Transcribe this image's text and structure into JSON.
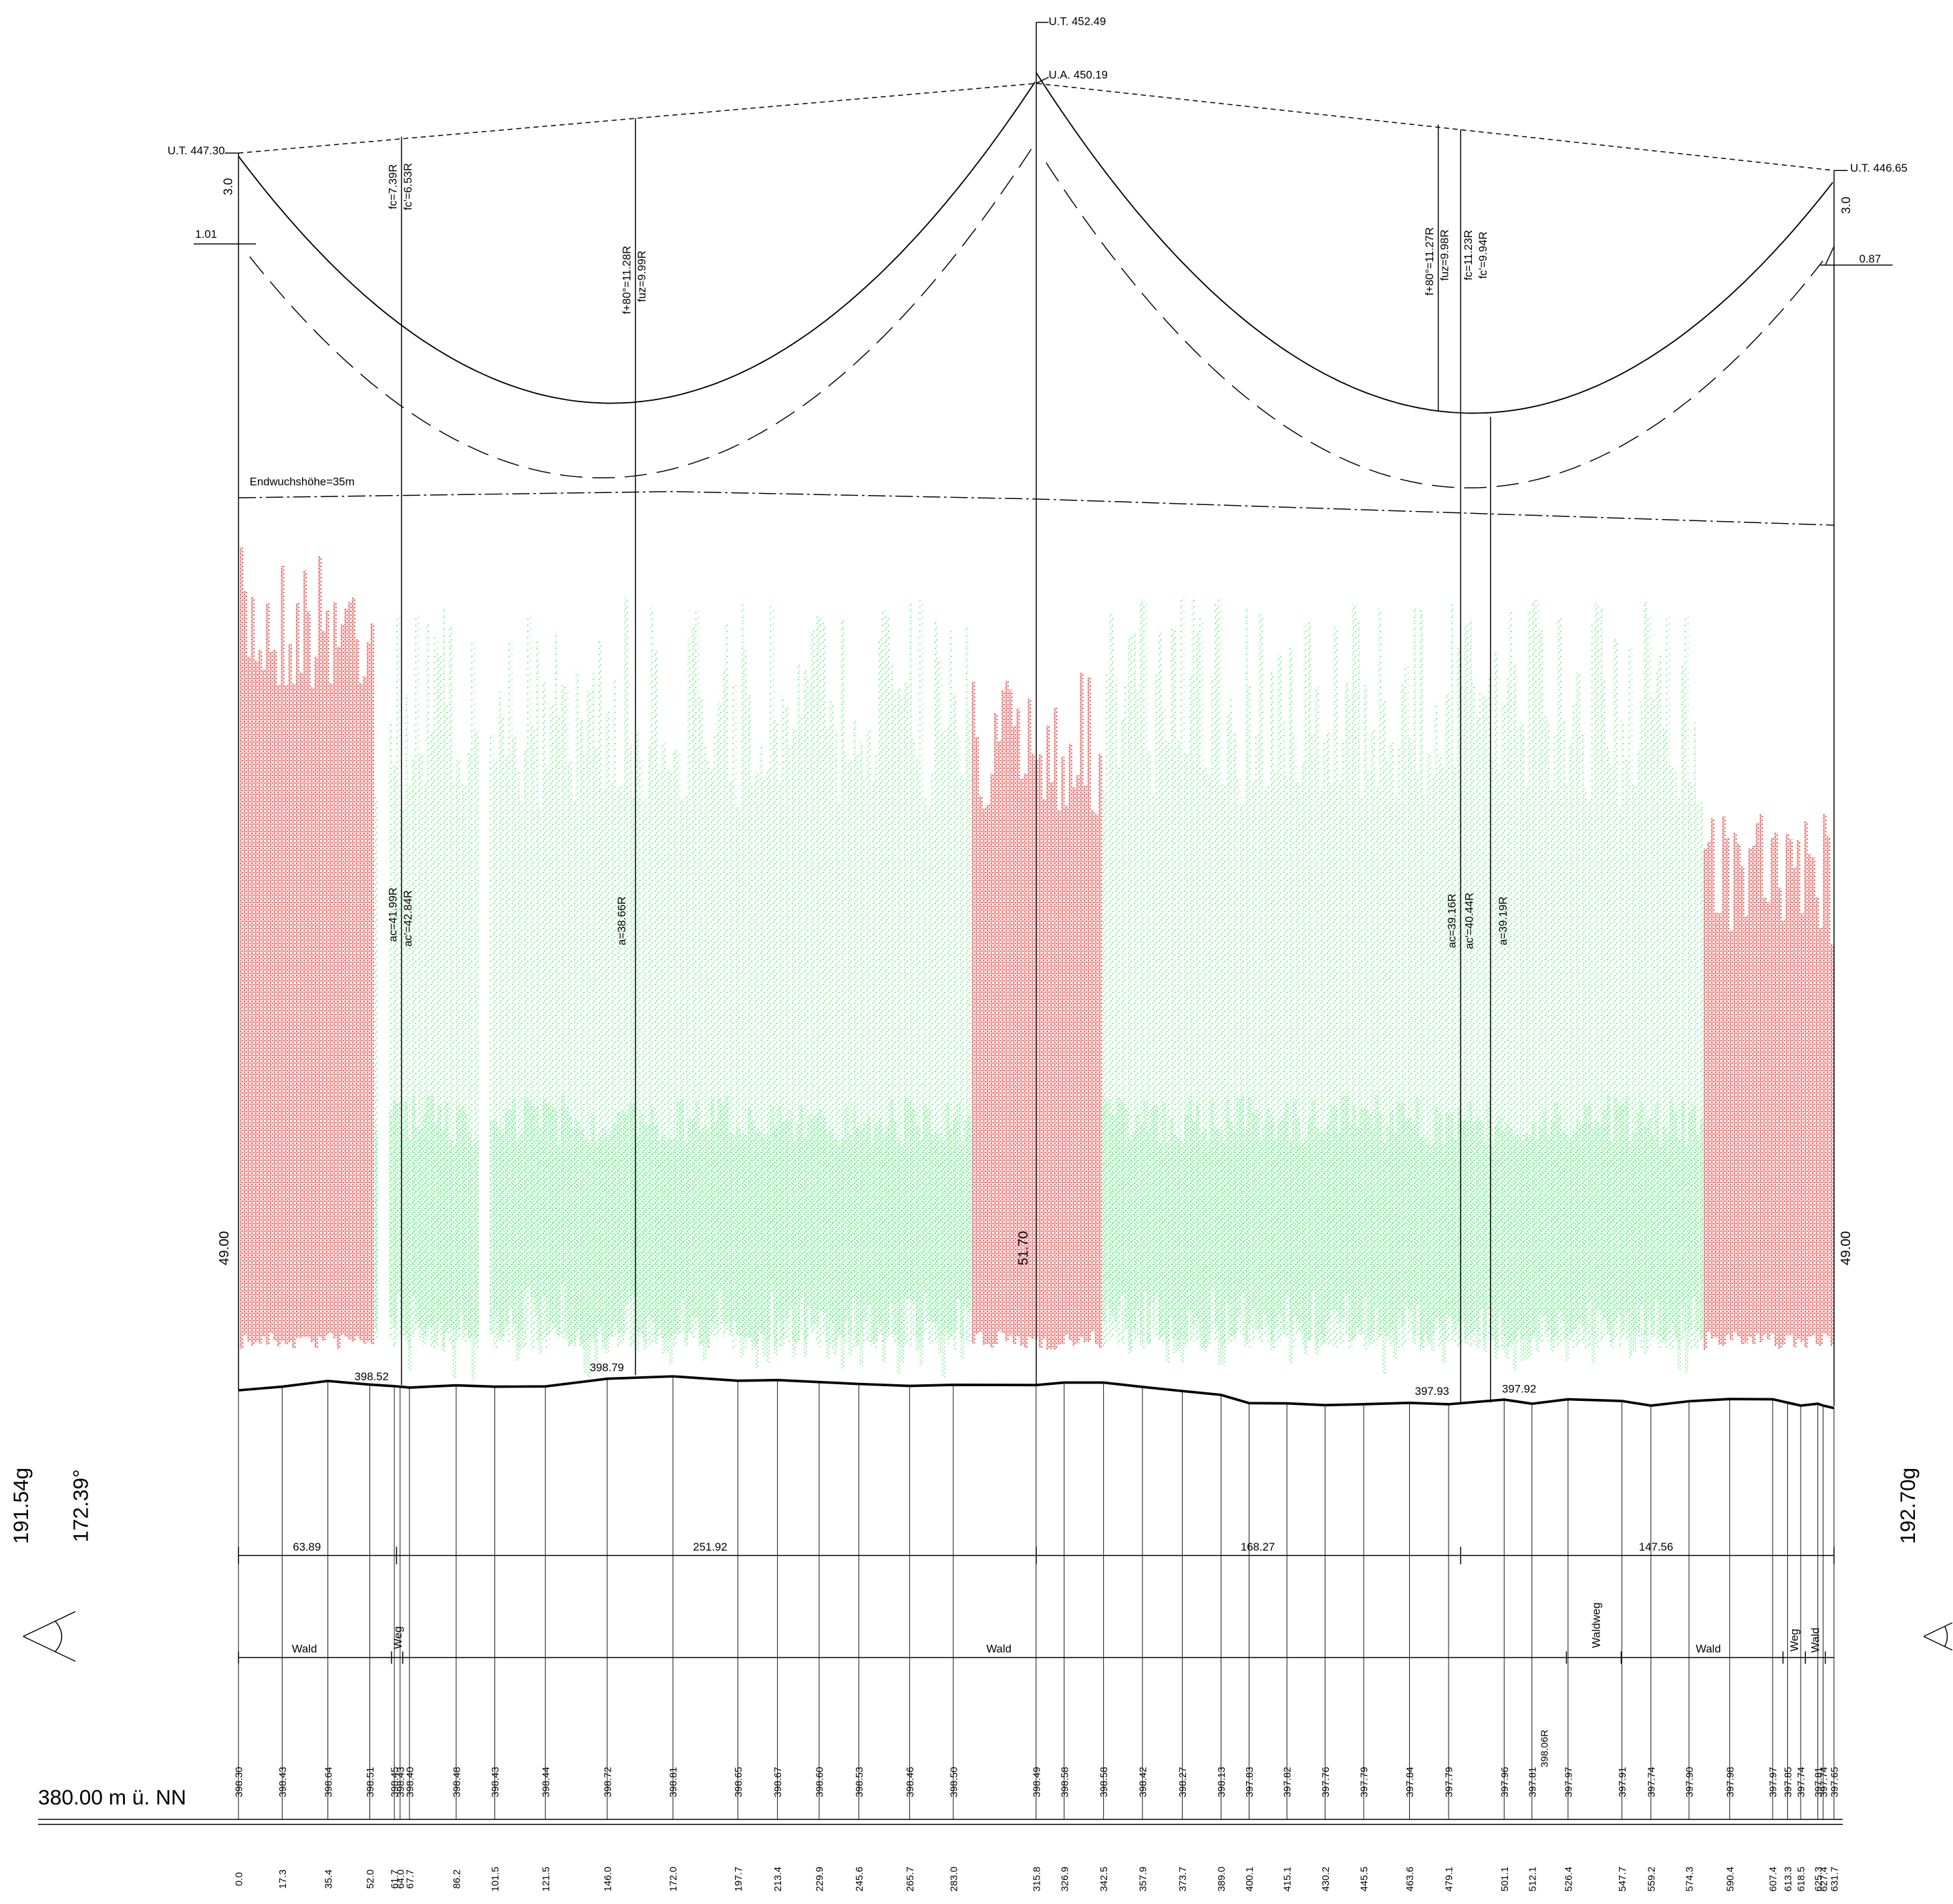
{
  "towers": [
    {
      "top": "U.T. 447.30",
      "height": "49.00",
      "offset": "3.0",
      "insulator": "1.01"
    },
    {
      "top": "U.T. 452.49",
      "attachment": "U.A. 450.19",
      "height": "51.70"
    },
    {
      "top": "U.T. 446.65",
      "height": "49.00",
      "offset": "3.0",
      "insulator": "0.87"
    }
  ],
  "sags": [
    "fc=7.39R",
    "fc'=6.53R",
    "f+80°=11.28R",
    "fuz=9.99R",
    "f+80°=11.27R",
    "fuz=9.98R",
    "fc=11.23R",
    "fc'=9.94R"
  ],
  "clearances": [
    "ac=41.99R",
    "ac'=42.84R",
    "a=38.66R",
    "ac=39.16R",
    "ac'=40.44R",
    "a=39.19R"
  ],
  "ground_points": [
    "398.52",
    "398.79",
    "397.93",
    "397.92"
  ],
  "growth_height": "Endwuchshöhe=35m",
  "spans": [
    "63.89",
    "251.92",
    "168.27",
    "147.56"
  ],
  "land_use": [
    "Wald",
    "Weg",
    "Wald",
    "Waldweg",
    "Wald",
    "Weg",
    "Wald"
  ],
  "angles": {
    "left_grad": "191.54g",
    "left_deg": "172.39°",
    "right_grad": "192.70g"
  },
  "datum": "380.00 m ü. NN",
  "profile": {
    "stations": [
      "0.0",
      "17.3",
      "35.4",
      "52.0",
      "61.7",
      "64.0",
      "67.7",
      "86.2",
      "101.5",
      "121.5",
      "146.0",
      "172.0",
      "197.7",
      "213.4",
      "229.9",
      "245.6",
      "265.7",
      "283.0",
      "315.8",
      "326.9",
      "342.5",
      "357.9",
      "373.7",
      "389.0",
      "400.1",
      "415.1",
      "430.2",
      "445.5",
      "463.6",
      "479.1",
      "501.1",
      "512.1",
      "526.4",
      "547.7",
      "559.2",
      "574.3",
      "590.4",
      "607.4",
      "613.3",
      "618.5",
      "625.3",
      "627.4",
      "631.7"
    ],
    "elevations": [
      "398.30",
      "398.43",
      "398.64",
      "398.51",
      "398.45",
      "398.43",
      "398.40",
      "398.48",
      "398.43",
      "398.44",
      "398.72",
      "398.81",
      "398.65",
      "398.67",
      "398.60",
      "398.53",
      "398.46",
      "398.50",
      "398.49",
      "398.58",
      "398.58",
      "398.42",
      "398.27",
      "398.13",
      "397.83",
      "397.82",
      "397.76",
      "397.79",
      "397.84",
      "397.79",
      "397.96",
      "397.81",
      "397.97",
      "397.91",
      "397.74",
      "397.90",
      "397.98",
      "397.97",
      "397.85",
      "397.74",
      "397.81",
      "397.74",
      "397.65"
    ],
    "extra_elevation": "398.06R"
  }
}
